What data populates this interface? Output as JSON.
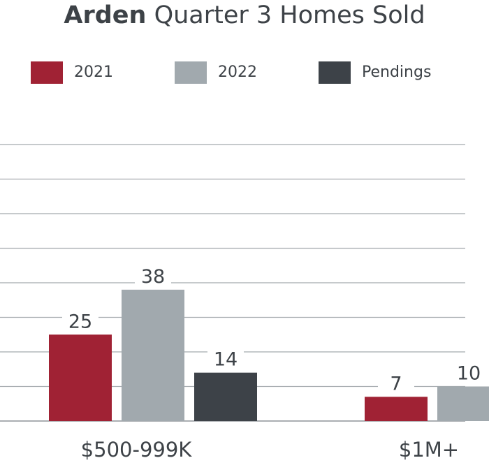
{
  "chart_data": {
    "type": "bar",
    "title_bold": "Arden",
    "title_rest": "Quarter 3 Homes Sold",
    "categories": [
      "$500-999K",
      "$1M+"
    ],
    "series": [
      {
        "name": "2021",
        "color": "#a02234",
        "values": [
          25,
          7
        ]
      },
      {
        "name": "2022",
        "color": "#a1a9ae",
        "values": [
          38,
          10
        ]
      },
      {
        "name": "Pendings",
        "color": "#3d4248",
        "values": [
          14,
          null
        ]
      }
    ],
    "value_labels": [
      [
        "25",
        "7"
      ],
      [
        "38",
        "10"
      ],
      [
        "14",
        ""
      ]
    ],
    "ylim": [
      0,
      80
    ],
    "grid_step": 10,
    "grid": true,
    "legend_position": "top"
  }
}
